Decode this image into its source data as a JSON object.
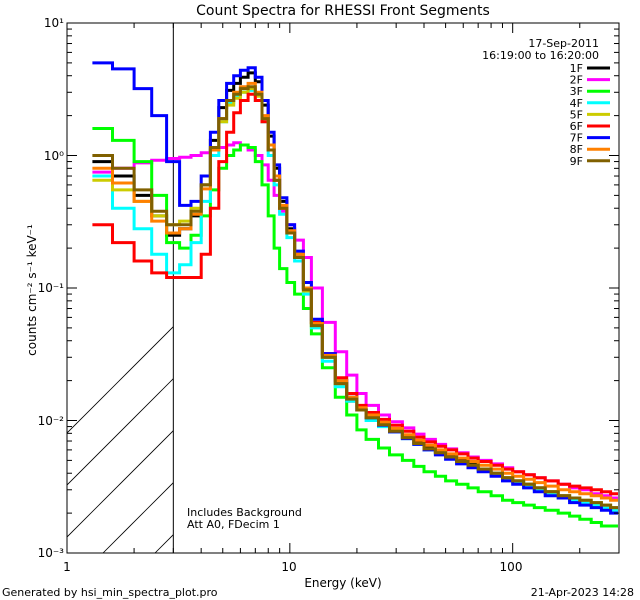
{
  "footer": {
    "generator": "Generated by hsi_min_spectra_plot.pro",
    "timestamp": "21-Apr-2023 14:28"
  },
  "chart_data": {
    "type": "line",
    "title": "Count Spectra for RHESSI Front Segments",
    "xlabel": "Energy (keV)",
    "ylabel": "counts cm⁻² s⁻¹ keV⁻¹",
    "xscale": "log",
    "yscale": "log",
    "xlim": [
      1,
      300
    ],
    "ylim": [
      0.001,
      10
    ],
    "x_tick_labels": [
      "1",
      "10",
      "100"
    ],
    "y_tick_labels": [
      "10⁻³",
      "10⁻²",
      "10⁻¹",
      "10⁰",
      "10¹"
    ],
    "date": "17-Sep-2011",
    "time_range": "16:19:00 to 16:20:00",
    "annotations": [
      "Includes Background",
      "Att A0, FDecim 1"
    ],
    "hatched_region_keV": [
      1,
      3
    ],
    "legend_position": "top-right",
    "series": [
      {
        "name": "1F",
        "color": "#000000",
        "x": [
          1.3,
          1.6,
          2.0,
          2.4,
          2.8,
          3.2,
          3.6,
          4.0,
          4.4,
          4.8,
          5.2,
          5.6,
          6.0,
          6.5,
          7.0,
          7.5,
          8.0,
          8.5,
          9.0,
          9.7,
          10.5,
          11.5,
          12.5,
          14,
          16,
          18,
          20,
          22,
          25,
          28,
          32,
          36,
          40,
          45,
          50,
          56,
          63,
          70,
          80,
          90,
          100,
          112,
          125,
          140,
          160,
          180,
          200,
          225,
          250,
          275
        ],
        "values": [
          0.9,
          0.7,
          0.5,
          0.35,
          0.25,
          0.28,
          0.35,
          0.6,
          1.3,
          2.3,
          3.1,
          3.5,
          3.9,
          4.2,
          3.6,
          2.4,
          1.4,
          0.8,
          0.45,
          0.28,
          0.18,
          0.1,
          0.055,
          0.03,
          0.019,
          0.014,
          0.012,
          0.011,
          0.0095,
          0.0085,
          0.0075,
          0.0068,
          0.0062,
          0.0058,
          0.0055,
          0.005,
          0.0047,
          0.0043,
          0.004,
          0.0037,
          0.0035,
          0.0033,
          0.0031,
          0.0029,
          0.0027,
          0.0025,
          0.0024,
          0.0023,
          0.0022,
          0.0021
        ]
      },
      {
        "name": "2F",
        "color": "#ff00ff",
        "x": [
          1.3,
          1.6,
          2.0,
          2.4,
          2.8,
          3.2,
          3.6,
          4.0,
          4.4,
          4.8,
          5.2,
          5.6,
          6.0,
          6.5,
          7.0,
          7.5,
          8.0,
          8.5,
          9.0,
          9.7,
          10.5,
          11.5,
          12.5,
          14,
          16,
          18,
          20,
          22,
          25,
          28,
          32,
          36,
          40,
          45,
          50,
          56,
          63,
          70,
          80,
          90,
          100,
          112,
          125,
          140,
          160,
          180,
          200,
          225,
          250,
          275
        ],
        "values": [
          0.75,
          0.8,
          0.88,
          0.92,
          0.95,
          0.97,
          1.0,
          1.05,
          1.1,
          1.15,
          1.2,
          1.25,
          1.2,
          1.1,
          1.0,
          0.85,
          0.65,
          0.5,
          0.38,
          0.3,
          0.23,
          0.17,
          0.1,
          0.055,
          0.033,
          0.022,
          0.016,
          0.013,
          0.011,
          0.0098,
          0.0088,
          0.0079,
          0.0072,
          0.0066,
          0.0061,
          0.0057,
          0.0053,
          0.005,
          0.0047,
          0.0044,
          0.0041,
          0.0039,
          0.0037,
          0.0035,
          0.0033,
          0.0031,
          0.003,
          0.0028,
          0.0027,
          0.0026
        ]
      },
      {
        "name": "3F",
        "color": "#00ff00",
        "x": [
          1.3,
          1.6,
          2.0,
          2.4,
          2.8,
          3.2,
          3.6,
          4.0,
          4.4,
          4.8,
          5.2,
          5.6,
          6.0,
          6.5,
          7.0,
          7.5,
          8.0,
          8.5,
          9.0,
          9.7,
          10.5,
          11.5,
          12.5,
          14,
          16,
          18,
          20,
          22,
          25,
          28,
          32,
          36,
          40,
          45,
          50,
          56,
          63,
          70,
          80,
          90,
          100,
          112,
          125,
          140,
          160,
          180,
          200,
          225,
          250,
          275
        ],
        "values": [
          1.6,
          1.3,
          0.9,
          0.5,
          0.22,
          0.2,
          0.25,
          0.35,
          0.55,
          0.8,
          1.0,
          1.1,
          1.2,
          1.15,
          0.9,
          0.6,
          0.35,
          0.2,
          0.14,
          0.11,
          0.09,
          0.07,
          0.045,
          0.025,
          0.015,
          0.011,
          0.0085,
          0.0072,
          0.0062,
          0.0055,
          0.005,
          0.0045,
          0.0041,
          0.0038,
          0.0035,
          0.0033,
          0.0031,
          0.0029,
          0.0027,
          0.0025,
          0.0024,
          0.0023,
          0.0022,
          0.0021,
          0.002,
          0.0019,
          0.0018,
          0.0017,
          0.0016,
          0.0016
        ]
      },
      {
        "name": "4F",
        "color": "#00ffff",
        "x": [
          1.3,
          1.6,
          2.0,
          2.4,
          2.8,
          3.2,
          3.6,
          4.0,
          4.4,
          4.8,
          5.2,
          5.6,
          6.0,
          6.5,
          7.0,
          7.5,
          8.0,
          8.5,
          9.0,
          9.7,
          10.5,
          11.5,
          12.5,
          14,
          16,
          18,
          20,
          22,
          25,
          28,
          32,
          36,
          40,
          45,
          50,
          56,
          63,
          70,
          80,
          90,
          100,
          112,
          125,
          140,
          160,
          180,
          200,
          225,
          250,
          275
        ],
        "values": [
          0.7,
          0.4,
          0.28,
          0.18,
          0.13,
          0.15,
          0.22,
          0.45,
          1.0,
          1.8,
          2.5,
          2.8,
          3.0,
          3.1,
          2.6,
          1.8,
          1.0,
          0.6,
          0.36,
          0.24,
          0.16,
          0.09,
          0.05,
          0.028,
          0.018,
          0.014,
          0.012,
          0.01,
          0.009,
          0.0082,
          0.0073,
          0.0066,
          0.006,
          0.0056,
          0.0052,
          0.0048,
          0.0045,
          0.0042,
          0.0039,
          0.0036,
          0.0034,
          0.0032,
          0.003,
          0.0028,
          0.0026,
          0.0025,
          0.0024,
          0.0023,
          0.0022,
          0.0021
        ]
      },
      {
        "name": "5F",
        "color": "#cccc00",
        "x": [
          1.3,
          1.6,
          2.0,
          2.4,
          2.8,
          3.2,
          3.6,
          4.0,
          4.4,
          4.8,
          5.2,
          5.6,
          6.0,
          6.5,
          7.0,
          7.5,
          8.0,
          8.5,
          9.0,
          9.7,
          10.5,
          11.5,
          12.5,
          14,
          16,
          18,
          20,
          22,
          25,
          28,
          32,
          36,
          40,
          45,
          50,
          56,
          63,
          70,
          80,
          90,
          100,
          112,
          125,
          140,
          160,
          180,
          200,
          225,
          250,
          275
        ],
        "values": [
          0.65,
          0.55,
          0.45,
          0.35,
          0.3,
          0.32,
          0.4,
          0.6,
          1.1,
          1.8,
          2.4,
          2.7,
          3.0,
          3.2,
          2.8,
          1.9,
          1.1,
          0.65,
          0.4,
          0.26,
          0.17,
          0.095,
          0.052,
          0.03,
          0.019,
          0.015,
          0.012,
          0.0105,
          0.0093,
          0.0083,
          0.0074,
          0.0067,
          0.0061,
          0.0057,
          0.0053,
          0.0049,
          0.0046,
          0.0043,
          0.004,
          0.0037,
          0.0035,
          0.0033,
          0.0031,
          0.0029,
          0.0027,
          0.0026,
          0.0025,
          0.0024,
          0.0023,
          0.0022
        ]
      },
      {
        "name": "6F",
        "color": "#ff0000",
        "x": [
          1.3,
          1.6,
          2.0,
          2.4,
          2.8,
          3.2,
          3.6,
          4.0,
          4.4,
          4.8,
          5.2,
          5.6,
          6.0,
          6.5,
          7.0,
          7.5,
          8.0,
          8.5,
          9.0,
          9.7,
          10.5,
          11.5,
          12.5,
          14,
          16,
          18,
          20,
          22,
          25,
          28,
          32,
          36,
          40,
          45,
          50,
          56,
          63,
          70,
          80,
          90,
          100,
          112,
          125,
          140,
          160,
          180,
          200,
          225,
          250,
          275
        ],
        "values": [
          0.3,
          0.22,
          0.16,
          0.13,
          0.12,
          0.12,
          0.12,
          0.18,
          0.4,
          0.9,
          1.5,
          2.1,
          2.6,
          2.9,
          2.6,
          1.8,
          1.1,
          0.65,
          0.4,
          0.26,
          0.17,
          0.1,
          0.055,
          0.032,
          0.021,
          0.016,
          0.013,
          0.0115,
          0.0102,
          0.0092,
          0.0083,
          0.0075,
          0.0069,
          0.0064,
          0.006,
          0.0056,
          0.0052,
          0.0049,
          0.0046,
          0.0043,
          0.0041,
          0.0039,
          0.0037,
          0.0035,
          0.0033,
          0.0032,
          0.0031,
          0.003,
          0.0029,
          0.0028
        ]
      },
      {
        "name": "7F",
        "color": "#0000ff",
        "x": [
          1.3,
          1.6,
          2.0,
          2.4,
          2.8,
          3.2,
          3.6,
          4.0,
          4.4,
          4.8,
          5.2,
          5.6,
          6.0,
          6.5,
          7.0,
          7.5,
          8.0,
          8.5,
          9.0,
          9.7,
          10.5,
          11.5,
          12.5,
          14,
          16,
          18,
          20,
          22,
          25,
          28,
          32,
          36,
          40,
          45,
          50,
          56,
          63,
          70,
          80,
          90,
          100,
          112,
          125,
          140,
          160,
          180,
          200,
          225,
          250,
          275
        ],
        "values": [
          5.0,
          4.5,
          3.2,
          2.0,
          0.9,
          0.42,
          0.45,
          0.7,
          1.5,
          2.6,
          3.5,
          4.0,
          4.4,
          4.6,
          3.9,
          2.6,
          1.5,
          0.85,
          0.48,
          0.3,
          0.19,
          0.11,
          0.058,
          0.032,
          0.02,
          0.015,
          0.012,
          0.0105,
          0.0092,
          0.0082,
          0.0073,
          0.0066,
          0.006,
          0.0055,
          0.0051,
          0.0047,
          0.0044,
          0.0041,
          0.0038,
          0.0035,
          0.0033,
          0.0031,
          0.0029,
          0.0027,
          0.0026,
          0.0024,
          0.0023,
          0.0022,
          0.0021,
          0.002
        ]
      },
      {
        "name": "8F",
        "color": "#ff8000",
        "x": [
          1.3,
          1.6,
          2.0,
          2.4,
          2.8,
          3.2,
          3.6,
          4.0,
          4.4,
          4.8,
          5.2,
          5.6,
          6.0,
          6.5,
          7.0,
          7.5,
          8.0,
          8.5,
          9.0,
          9.7,
          10.5,
          11.5,
          12.5,
          14,
          16,
          18,
          20,
          22,
          25,
          28,
          32,
          36,
          40,
          45,
          50,
          56,
          63,
          70,
          80,
          90,
          100,
          112,
          125,
          140,
          160,
          180,
          200,
          225,
          250,
          275
        ],
        "values": [
          0.8,
          0.62,
          0.45,
          0.32,
          0.26,
          0.28,
          0.36,
          0.56,
          1.1,
          1.9,
          2.6,
          3.0,
          3.3,
          3.5,
          3.0,
          2.0,
          1.2,
          0.7,
          0.42,
          0.27,
          0.18,
          0.1,
          0.054,
          0.031,
          0.02,
          0.015,
          0.0125,
          0.011,
          0.0097,
          0.0087,
          0.0078,
          0.0071,
          0.0065,
          0.006,
          0.0056,
          0.0052,
          0.0049,
          0.0046,
          0.0043,
          0.004,
          0.0038,
          0.0036,
          0.0034,
          0.0032,
          0.003,
          0.0029,
          0.0028,
          0.0027,
          0.0026,
          0.0025
        ]
      },
      {
        "name": "9F",
        "color": "#806000",
        "x": [
          1.3,
          1.6,
          2.0,
          2.4,
          2.8,
          3.2,
          3.6,
          4.0,
          4.4,
          4.8,
          5.2,
          5.6,
          6.0,
          6.5,
          7.0,
          7.5,
          8.0,
          8.5,
          9.0,
          9.7,
          10.5,
          11.5,
          12.5,
          14,
          16,
          18,
          20,
          22,
          25,
          28,
          32,
          36,
          40,
          45,
          50,
          56,
          63,
          70,
          80,
          90,
          100,
          112,
          125,
          140,
          160,
          180,
          200,
          225,
          250,
          275
        ],
        "values": [
          1.0,
          0.8,
          0.55,
          0.38,
          0.3,
          0.3,
          0.38,
          0.6,
          1.15,
          1.9,
          2.6,
          2.9,
          3.2,
          3.3,
          2.9,
          1.9,
          1.1,
          0.65,
          0.4,
          0.26,
          0.17,
          0.097,
          0.052,
          0.03,
          0.019,
          0.0145,
          0.012,
          0.0105,
          0.0093,
          0.0083,
          0.0074,
          0.0067,
          0.0061,
          0.0057,
          0.0053,
          0.0049,
          0.0046,
          0.0043,
          0.004,
          0.0037,
          0.0035,
          0.0033,
          0.0031,
          0.0029,
          0.0027,
          0.0026,
          0.0025,
          0.0024,
          0.0023,
          0.0022
        ]
      }
    ]
  }
}
